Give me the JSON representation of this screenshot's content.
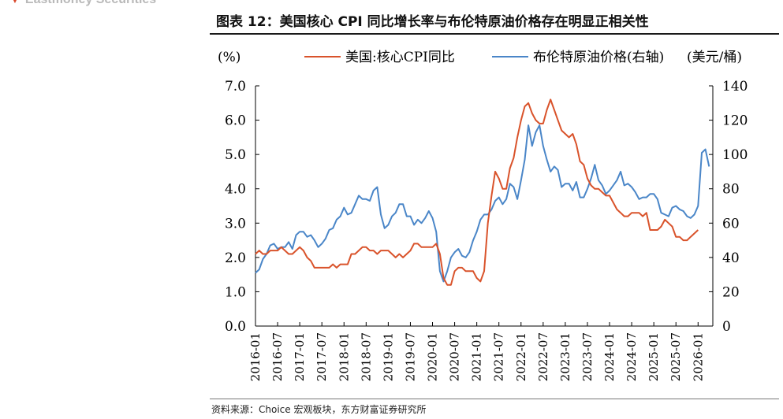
{
  "header": {
    "brand": "Eastmoney Securities",
    "title": "图表 12：美国核心 CPI 同比增长率与布伦特原油价格存在明显正相关性"
  },
  "footer": {
    "source": "资料来源：Choice 宏观板块，东方财富证券研究所"
  },
  "colors": {
    "cpi": "#d9532b",
    "oil": "#4a86c8"
  },
  "chart_data": {
    "type": "line",
    "left_unit": "(%)",
    "right_unit": "(美元/桶)",
    "ylim_left": [
      0,
      7
    ],
    "yticks_left": [
      "0.0",
      "1.0",
      "2.0",
      "3.0",
      "4.0",
      "5.0",
      "6.0",
      "7.0"
    ],
    "ylim_right": [
      0,
      140
    ],
    "yticks_right": [
      "0",
      "20",
      "40",
      "60",
      "80",
      "100",
      "120",
      "140"
    ],
    "x_range": [
      "2016-01",
      "2026-05"
    ],
    "x_tick_labels": [
      "2016-01",
      "2016-07",
      "2017-01",
      "2017-07",
      "2018-01",
      "2018-07",
      "2019-01",
      "2019-07",
      "2020-01",
      "2020-07",
      "2021-01",
      "2021-07",
      "2022-01",
      "2022-07",
      "2023-01",
      "2023-07",
      "2024-01",
      "2024-07",
      "2025-01",
      "2025-07",
      "2026-01"
    ],
    "series": [
      {
        "name": "美国:核心CPI同比",
        "axis": "left",
        "start": "2016-01",
        "frequency": "monthly",
        "values": [
          2.1,
          2.2,
          2.1,
          2.1,
          2.2,
          2.2,
          2.2,
          2.3,
          2.2,
          2.1,
          2.1,
          2.2,
          2.3,
          2.2,
          2.0,
          1.9,
          1.7,
          1.7,
          1.7,
          1.7,
          1.7,
          1.8,
          1.7,
          1.8,
          1.8,
          1.8,
          2.1,
          2.1,
          2.2,
          2.3,
          2.3,
          2.2,
          2.2,
          2.1,
          2.2,
          2.2,
          2.2,
          2.1,
          2.0,
          2.1,
          2.0,
          2.1,
          2.2,
          2.4,
          2.4,
          2.3,
          2.3,
          2.3,
          2.3,
          2.4,
          2.1,
          1.4,
          1.2,
          1.2,
          1.6,
          1.7,
          1.7,
          1.6,
          1.6,
          1.6,
          1.4,
          1.3,
          1.6,
          3.0,
          3.8,
          4.5,
          4.3,
          4.0,
          4.0,
          4.6,
          4.9,
          5.5,
          6.0,
          6.4,
          6.5,
          6.2,
          6.0,
          5.9,
          5.9,
          6.3,
          6.6,
          6.3,
          6.0,
          5.7,
          5.6,
          5.5,
          5.6,
          5.3,
          4.8,
          4.7,
          4.3,
          4.1,
          4.0,
          4.0,
          3.9,
          3.8,
          3.8,
          3.6,
          3.4,
          3.3,
          3.2,
          3.2,
          3.3,
          3.3,
          3.3,
          3.2,
          3.3,
          2.8,
          2.8,
          2.8,
          2.9,
          3.1,
          3.0,
          2.9,
          2.6,
          2.6,
          2.5,
          2.5,
          2.6,
          2.7,
          2.8
        ]
      },
      {
        "name": "布伦特原油价格(右轴)",
        "axis": "right",
        "start": "2016-01",
        "frequency": "monthly",
        "values": [
          31,
          33,
          39,
          42,
          47,
          48,
          45,
          46,
          46,
          49,
          45,
          53,
          55,
          55,
          52,
          53,
          50,
          46,
          48,
          51,
          56,
          57,
          62,
          64,
          69,
          65,
          66,
          71,
          76,
          74,
          74,
          73,
          79,
          81,
          65,
          57,
          59,
          64,
          66,
          71,
          71,
          64,
          64,
          59,
          62,
          60,
          63,
          67,
          63,
          55,
          32,
          26,
          32,
          40,
          43,
          45,
          41,
          40,
          43,
          50,
          55,
          62,
          65,
          65,
          68,
          73,
          75,
          71,
          74,
          83,
          81,
          74,
          85,
          97,
          117,
          105,
          113,
          117,
          105,
          97,
          90,
          93,
          91,
          81,
          83,
          83,
          79,
          84,
          75,
          75,
          80,
          86,
          94,
          85,
          82,
          77,
          79,
          82,
          85,
          90,
          82,
          83,
          81,
          78,
          74,
          75,
          75,
          77,
          77,
          74,
          66,
          65,
          64,
          69,
          70,
          68,
          67,
          64,
          63,
          65,
          70,
          101,
          103,
          93
        ]
      }
    ]
  }
}
